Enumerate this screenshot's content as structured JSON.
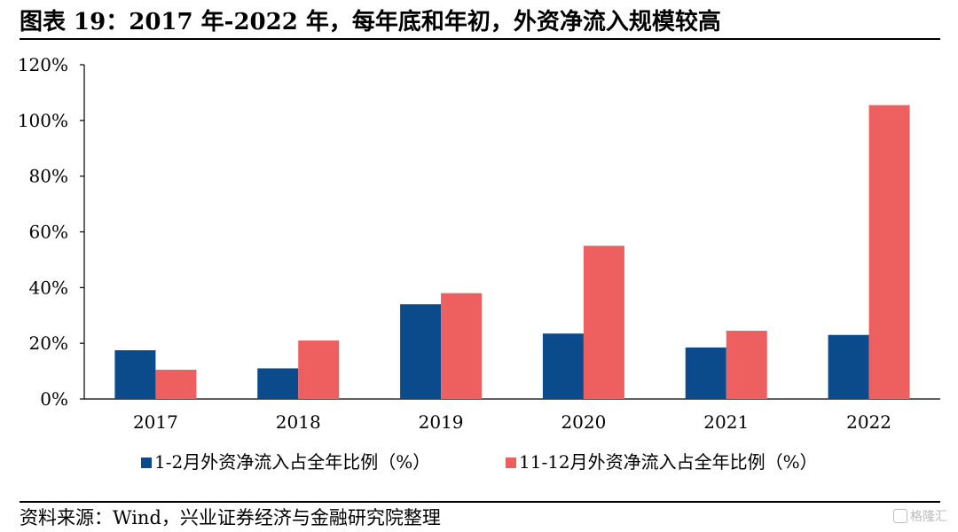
{
  "header": {
    "title": "图表 19：2017 年-2022 年，每年底和年初，外资净流入规模较高"
  },
  "footer": {
    "source": "资料来源：Wind，兴业证券经济与金融研究院整理",
    "watermark": "格隆汇"
  },
  "chart_data": {
    "type": "bar",
    "categories": [
      "2017",
      "2018",
      "2019",
      "2020",
      "2021",
      "2022"
    ],
    "series": [
      {
        "name": "1-2月外资净流入占全年比例（%）",
        "values": [
          17.5,
          11,
          34,
          23.5,
          18.5,
          23
        ],
        "color": "#0b4b8c"
      },
      {
        "name": "11-12月外资净流入占全年比例（%）",
        "values": [
          10.5,
          21,
          38,
          55,
          24.5,
          105.5
        ],
        "color": "#ee5f5f"
      }
    ],
    "ylim": [
      0,
      120
    ],
    "yticks": [
      0,
      20,
      40,
      60,
      80,
      100,
      120
    ],
    "ytick_labels": [
      "0%",
      "20%",
      "40%",
      "60%",
      "80%",
      "100%",
      "120%"
    ],
    "xlabel": "",
    "ylabel": "",
    "grid": false,
    "legend_position": "bottom"
  }
}
